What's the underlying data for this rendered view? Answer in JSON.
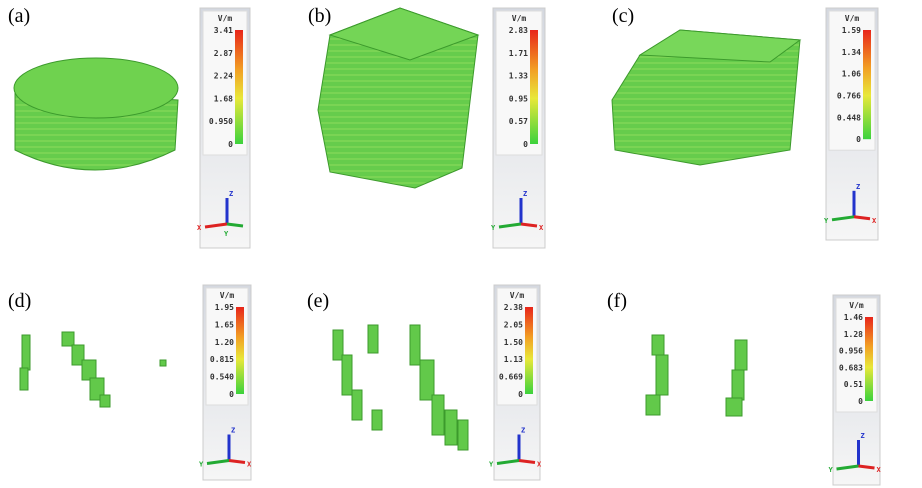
{
  "panels": [
    {
      "label": "(a)",
      "unit": "V/m",
      "ticks": [
        "3.41",
        "2.87",
        "2.24",
        "1.68",
        "0.950",
        "0"
      ],
      "axes": [
        "Z",
        "X",
        "Y"
      ]
    },
    {
      "label": "(b)",
      "unit": "V/m",
      "ticks": [
        "2.83",
        "1.71",
        "1.33",
        "0.95",
        "0.57",
        "0"
      ],
      "axes": [
        "Z",
        "Y",
        "X"
      ]
    },
    {
      "label": "(c)",
      "unit": "V/m",
      "ticks": [
        "1.59",
        "1.34",
        "1.06",
        "0.766",
        "0.448",
        "0"
      ],
      "axes": [
        "Z",
        "Y",
        "X"
      ]
    },
    {
      "label": "(d)",
      "unit": "V/m",
      "ticks": [
        "1.95",
        "1.65",
        "1.20",
        "0.815",
        "0.540",
        "0"
      ],
      "axes": [
        "Z",
        "Y",
        "X"
      ]
    },
    {
      "label": "(e)",
      "unit": "V/m",
      "ticks": [
        "2.38",
        "2.05",
        "1.50",
        "1.13",
        "0.669",
        "0"
      ],
      "axes": [
        "Z",
        "Y",
        "X"
      ]
    },
    {
      "label": "(f)",
      "unit": "V/m",
      "ticks": [
        "1.46",
        "1.28",
        "0.956",
        "0.683",
        "0.51",
        "0"
      ],
      "axes": [
        "Z",
        "Y",
        "X"
      ]
    }
  ]
}
